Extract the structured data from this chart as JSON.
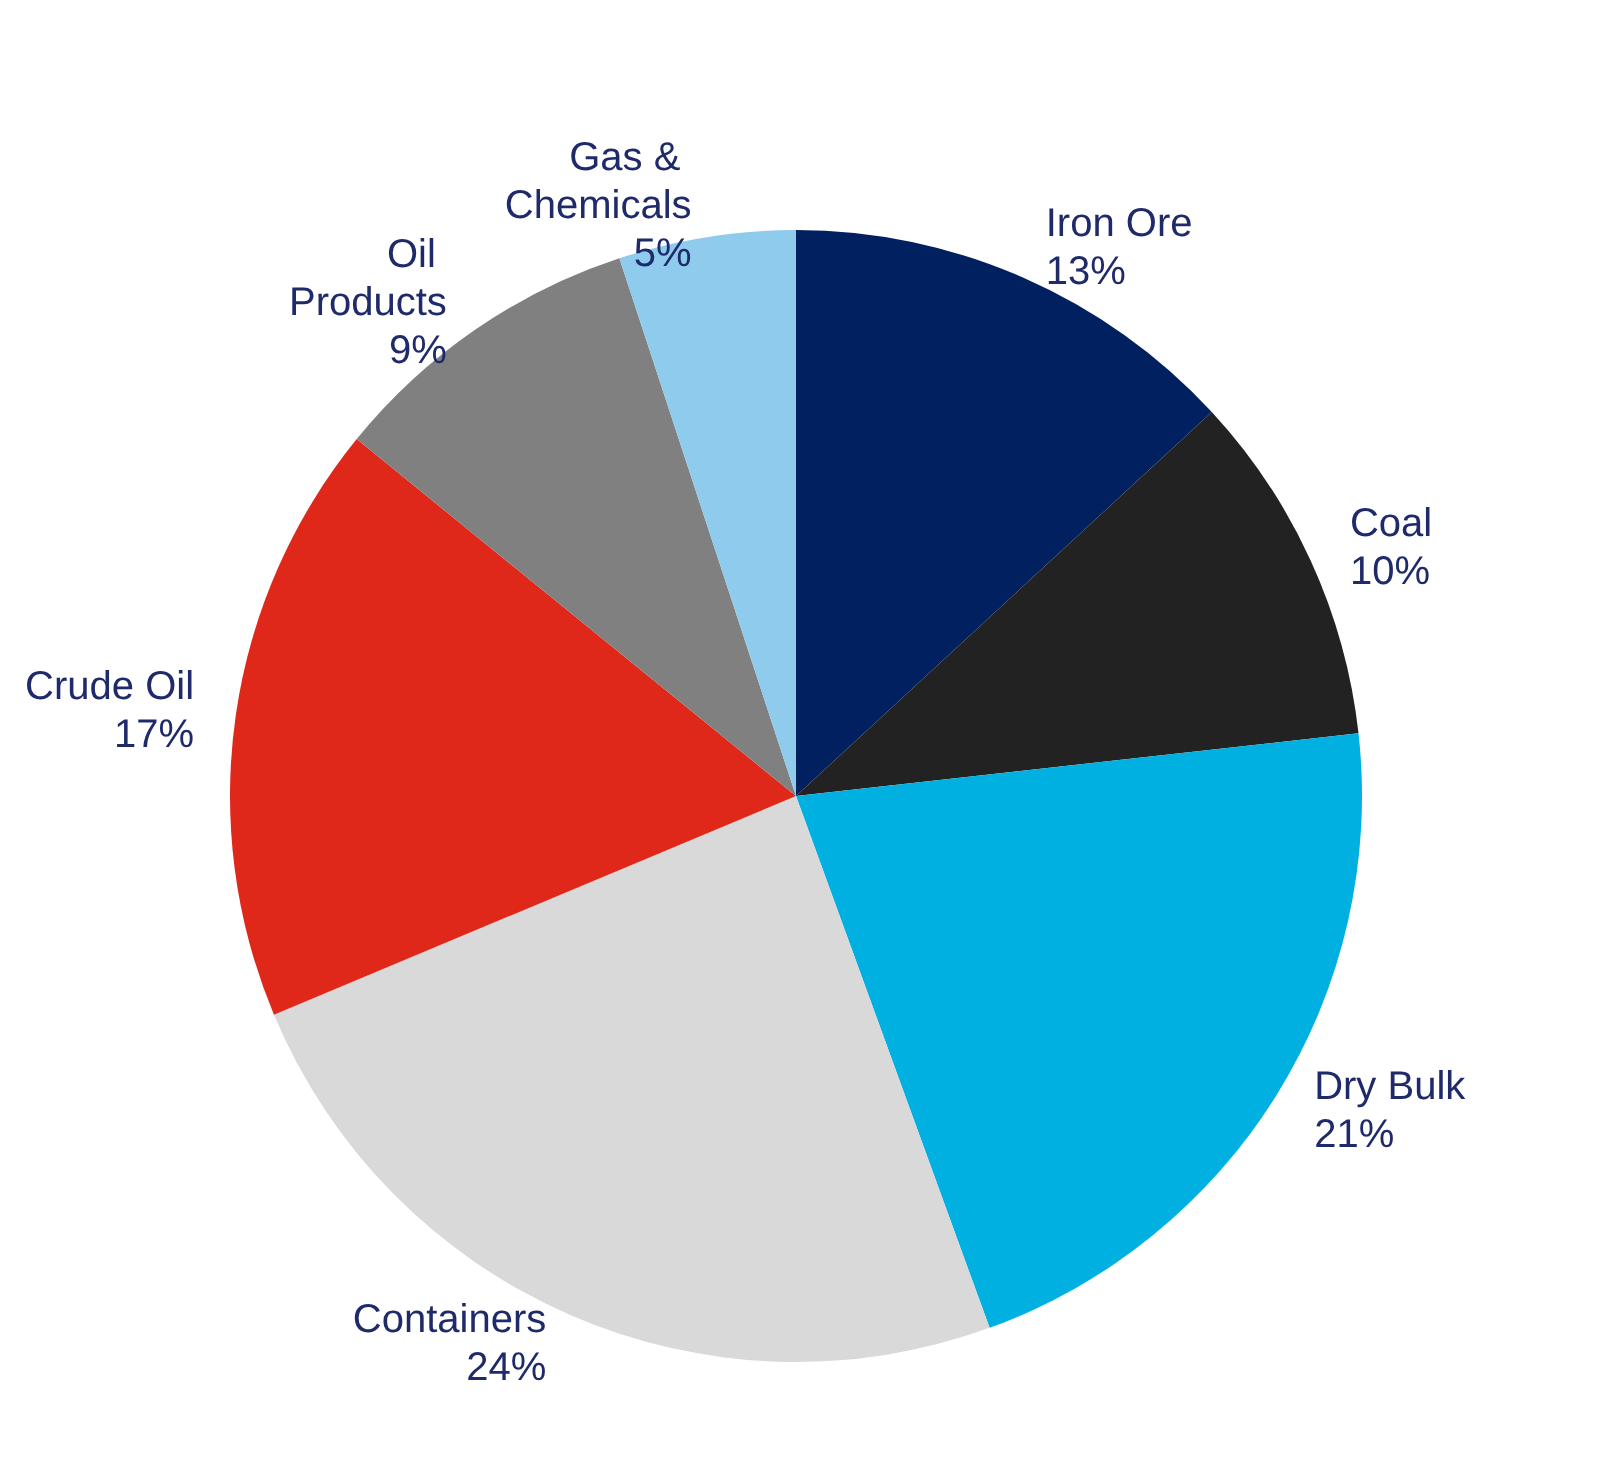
{
  "chart_data": {
    "type": "pie",
    "categories": [
      "Iron Ore",
      "Coal",
      "Dry Bulk",
      "Containers",
      "Crude Oil",
      "Oil Products",
      "Gas & Chemicals"
    ],
    "values": [
      13,
      10,
      21,
      24,
      17,
      9,
      5
    ],
    "colors": [
      "#002060",
      "#222222",
      "#00b0e0",
      "#d9d9d9",
      "#e0281a",
      "#808080",
      "#8ecbec"
    ],
    "value_labels": [
      "13%",
      "10%",
      "21%",
      "24%",
      "17%",
      "9%",
      "5%"
    ],
    "legend": false
  }
}
